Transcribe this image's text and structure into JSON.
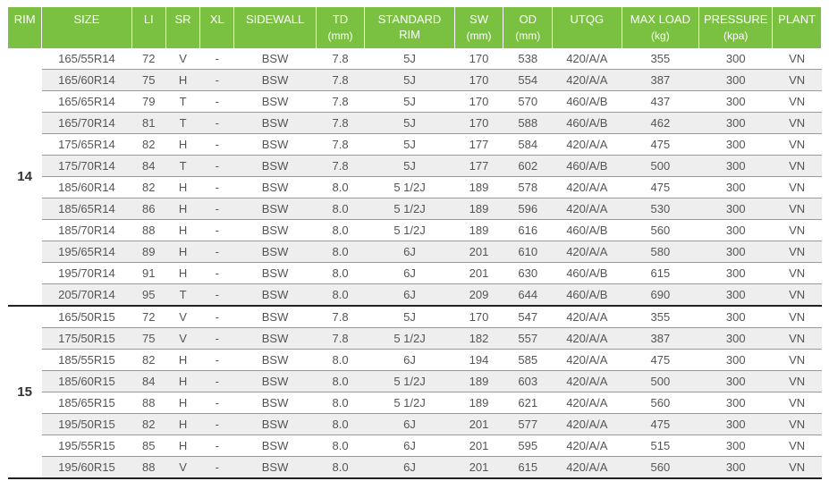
{
  "colors": {
    "header_bg": "#7ac142",
    "header_text": "#ffffff",
    "row_alt_bg": "#eeeeee",
    "body_text": "#555555",
    "border": "#999999",
    "group_border": "#222222"
  },
  "typography": {
    "header_fontsize": 13,
    "body_fontsize": 13,
    "rim_label_fontsize": 15
  },
  "table": {
    "type": "table",
    "columns": [
      {
        "key": "rim",
        "label": "RIM",
        "sub": null,
        "width": "4.2%"
      },
      {
        "key": "size",
        "label": "SIZE",
        "sub": null,
        "width": "11%"
      },
      {
        "key": "li",
        "label": "LI",
        "sub": null,
        "width": "4.2%"
      },
      {
        "key": "sr",
        "label": "SR",
        "sub": null,
        "width": "4.2%"
      },
      {
        "key": "xl",
        "label": "XL",
        "sub": null,
        "width": "4.2%"
      },
      {
        "key": "sidewall",
        "label": "SIDEWALL",
        "sub": null,
        "width": "10%"
      },
      {
        "key": "td",
        "label": "TD",
        "sub": "(mm)",
        "width": "6%"
      },
      {
        "key": "stdrim",
        "label": "STANDARD RIM",
        "sub": null,
        "width": "11%"
      },
      {
        "key": "sw",
        "label": "SW",
        "sub": "(mm)",
        "width": "6%"
      },
      {
        "key": "od",
        "label": "OD",
        "sub": "(mm)",
        "width": "6%"
      },
      {
        "key": "utqg",
        "label": "UTQG",
        "sub": null,
        "width": "8.5%"
      },
      {
        "key": "maxload",
        "label": "MAX LOAD",
        "sub": "(kg)",
        "width": "9.5%"
      },
      {
        "key": "pressure",
        "label": "PRESSURE",
        "sub": "(kpa)",
        "width": "9%"
      },
      {
        "key": "plant",
        "label": "PLANT",
        "sub": null,
        "width": "6%"
      }
    ],
    "groups": [
      {
        "rim": "14",
        "rows": [
          {
            "size": "165/55R14",
            "li": "72",
            "sr": "V",
            "xl": "-",
            "sidewall": "BSW",
            "td": "7.8",
            "stdrim": "5J",
            "sw": "170",
            "od": "538",
            "utqg": "420/A/A",
            "maxload": "355",
            "pressure": "300",
            "plant": "VN"
          },
          {
            "size": "165/60R14",
            "li": "75",
            "sr": "H",
            "xl": "-",
            "sidewall": "BSW",
            "td": "7.8",
            "stdrim": "5J",
            "sw": "170",
            "od": "554",
            "utqg": "420/A/A",
            "maxload": "387",
            "pressure": "300",
            "plant": "VN"
          },
          {
            "size": "165/65R14",
            "li": "79",
            "sr": "T",
            "xl": "-",
            "sidewall": "BSW",
            "td": "7.8",
            "stdrim": "5J",
            "sw": "170",
            "od": "570",
            "utqg": "460/A/B",
            "maxload": "437",
            "pressure": "300",
            "plant": "VN"
          },
          {
            "size": "165/70R14",
            "li": "81",
            "sr": "T",
            "xl": "-",
            "sidewall": "BSW",
            "td": "7.8",
            "stdrim": "5J",
            "sw": "170",
            "od": "588",
            "utqg": "460/A/B",
            "maxload": "462",
            "pressure": "300",
            "plant": "VN"
          },
          {
            "size": "175/65R14",
            "li": "82",
            "sr": "H",
            "xl": "-",
            "sidewall": "BSW",
            "td": "7.8",
            "stdrim": "5J",
            "sw": "177",
            "od": "584",
            "utqg": "420/A/A",
            "maxload": "475",
            "pressure": "300",
            "plant": "VN"
          },
          {
            "size": "175/70R14",
            "li": "84",
            "sr": "T",
            "xl": "-",
            "sidewall": "BSW",
            "td": "7.8",
            "stdrim": "5J",
            "sw": "177",
            "od": "602",
            "utqg": "460/A/B",
            "maxload": "500",
            "pressure": "300",
            "plant": "VN"
          },
          {
            "size": "185/60R14",
            "li": "82",
            "sr": "H",
            "xl": "-",
            "sidewall": "BSW",
            "td": "8.0",
            "stdrim": "5 1/2J",
            "sw": "189",
            "od": "578",
            "utqg": "420/A/A",
            "maxload": "475",
            "pressure": "300",
            "plant": "VN"
          },
          {
            "size": "185/65R14",
            "li": "86",
            "sr": "H",
            "xl": "-",
            "sidewall": "BSW",
            "td": "8.0",
            "stdrim": "5 1/2J",
            "sw": "189",
            "od": "596",
            "utqg": "420/A/A",
            "maxload": "530",
            "pressure": "300",
            "plant": "VN"
          },
          {
            "size": "185/70R14",
            "li": "88",
            "sr": "H",
            "xl": "-",
            "sidewall": "BSW",
            "td": "8.0",
            "stdrim": "5 1/2J",
            "sw": "189",
            "od": "616",
            "utqg": "460/A/B",
            "maxload": "560",
            "pressure": "300",
            "plant": "VN"
          },
          {
            "size": "195/65R14",
            "li": "89",
            "sr": "H",
            "xl": "-",
            "sidewall": "BSW",
            "td": "8.0",
            "stdrim": "6J",
            "sw": "201",
            "od": "610",
            "utqg": "420/A/A",
            "maxload": "580",
            "pressure": "300",
            "plant": "VN"
          },
          {
            "size": "195/70R14",
            "li": "91",
            "sr": "H",
            "xl": "-",
            "sidewall": "BSW",
            "td": "8.0",
            "stdrim": "6J",
            "sw": "201",
            "od": "630",
            "utqg": "460/A/B",
            "maxload": "615",
            "pressure": "300",
            "plant": "VN"
          },
          {
            "size": "205/70R14",
            "li": "95",
            "sr": "T",
            "xl": "-",
            "sidewall": "BSW",
            "td": "8.0",
            "stdrim": "6J",
            "sw": "209",
            "od": "644",
            "utqg": "460/A/B",
            "maxload": "690",
            "pressure": "300",
            "plant": "VN"
          }
        ]
      },
      {
        "rim": "15",
        "rows": [
          {
            "size": "165/50R15",
            "li": "72",
            "sr": "V",
            "xl": "-",
            "sidewall": "BSW",
            "td": "7.8",
            "stdrim": "5J",
            "sw": "170",
            "od": "547",
            "utqg": "420/A/A",
            "maxload": "355",
            "pressure": "300",
            "plant": "VN"
          },
          {
            "size": "175/50R15",
            "li": "75",
            "sr": "V",
            "xl": "-",
            "sidewall": "BSW",
            "td": "7.8",
            "stdrim": "5 1/2J",
            "sw": "182",
            "od": "557",
            "utqg": "420/A/A",
            "maxload": "387",
            "pressure": "300",
            "plant": "VN"
          },
          {
            "size": "185/55R15",
            "li": "82",
            "sr": "H",
            "xl": "-",
            "sidewall": "BSW",
            "td": "8.0",
            "stdrim": "6J",
            "sw": "194",
            "od": "585",
            "utqg": "420/A/A",
            "maxload": "475",
            "pressure": "300",
            "plant": "VN"
          },
          {
            "size": "185/60R15",
            "li": "84",
            "sr": "H",
            "xl": "-",
            "sidewall": "BSW",
            "td": "8.0",
            "stdrim": "5 1/2J",
            "sw": "189",
            "od": "603",
            "utqg": "420/A/A",
            "maxload": "500",
            "pressure": "300",
            "plant": "VN"
          },
          {
            "size": "185/65R15",
            "li": "88",
            "sr": "H",
            "xl": "-",
            "sidewall": "BSW",
            "td": "8.0",
            "stdrim": "5 1/2J",
            "sw": "189",
            "od": "621",
            "utqg": "420/A/A",
            "maxload": "560",
            "pressure": "300",
            "plant": "VN"
          },
          {
            "size": "195/50R15",
            "li": "82",
            "sr": "H",
            "xl": "-",
            "sidewall": "BSW",
            "td": "8.0",
            "stdrim": "6J",
            "sw": "201",
            "od": "577",
            "utqg": "420/A/A",
            "maxload": "475",
            "pressure": "300",
            "plant": "VN"
          },
          {
            "size": "195/55R15",
            "li": "85",
            "sr": "H",
            "xl": "-",
            "sidewall": "BSW",
            "td": "8.0",
            "stdrim": "6J",
            "sw": "201",
            "od": "595",
            "utqg": "420/A/A",
            "maxload": "515",
            "pressure": "300",
            "plant": "VN"
          },
          {
            "size": "195/60R15",
            "li": "88",
            "sr": "V",
            "xl": "-",
            "sidewall": "BSW",
            "td": "8.0",
            "stdrim": "6J",
            "sw": "201",
            "od": "615",
            "utqg": "420/A/A",
            "maxload": "560",
            "pressure": "300",
            "plant": "VN"
          }
        ]
      }
    ]
  }
}
